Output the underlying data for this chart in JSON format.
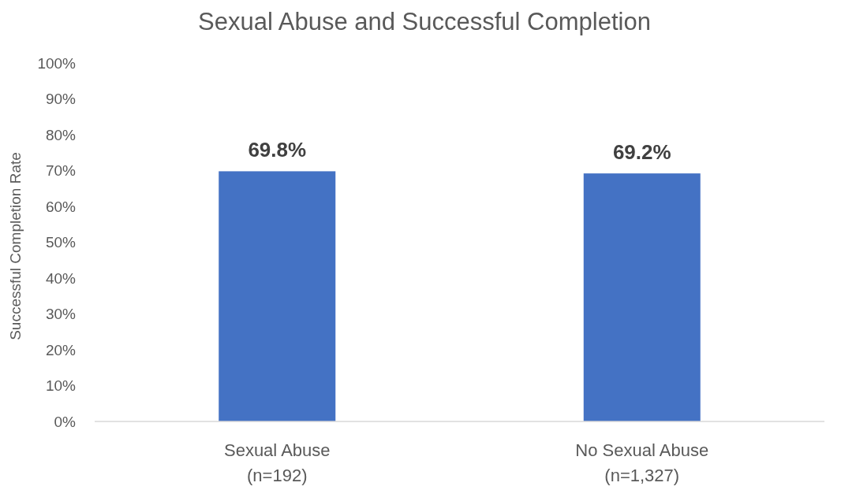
{
  "chart_data": {
    "type": "bar",
    "title": "Sexual Abuse and Successful Completion",
    "ylabel": "Successful Completion Rate",
    "categories": [
      "Sexual Abuse\n(n=192)",
      "No Sexual Abuse\n(n=1,327)"
    ],
    "values": [
      69.8,
      69.2
    ],
    "color": "#4472c4",
    "value_labels": [
      "69.8%",
      "69.2%"
    ],
    "ylim": [
      0,
      100
    ],
    "yticks": [
      {
        "value": 0,
        "label": "0%"
      },
      {
        "value": 10,
        "label": "10%"
      },
      {
        "value": 20,
        "label": "20%"
      },
      {
        "value": 30,
        "label": "30%"
      },
      {
        "value": 40,
        "label": "40%"
      },
      {
        "value": 50,
        "label": "50%"
      },
      {
        "value": 60,
        "label": "60%"
      },
      {
        "value": 70,
        "label": "70%"
      },
      {
        "value": 80,
        "label": "80%"
      },
      {
        "value": 90,
        "label": "90%"
      },
      {
        "value": 100,
        "label": "100%"
      }
    ],
    "grid": false
  }
}
